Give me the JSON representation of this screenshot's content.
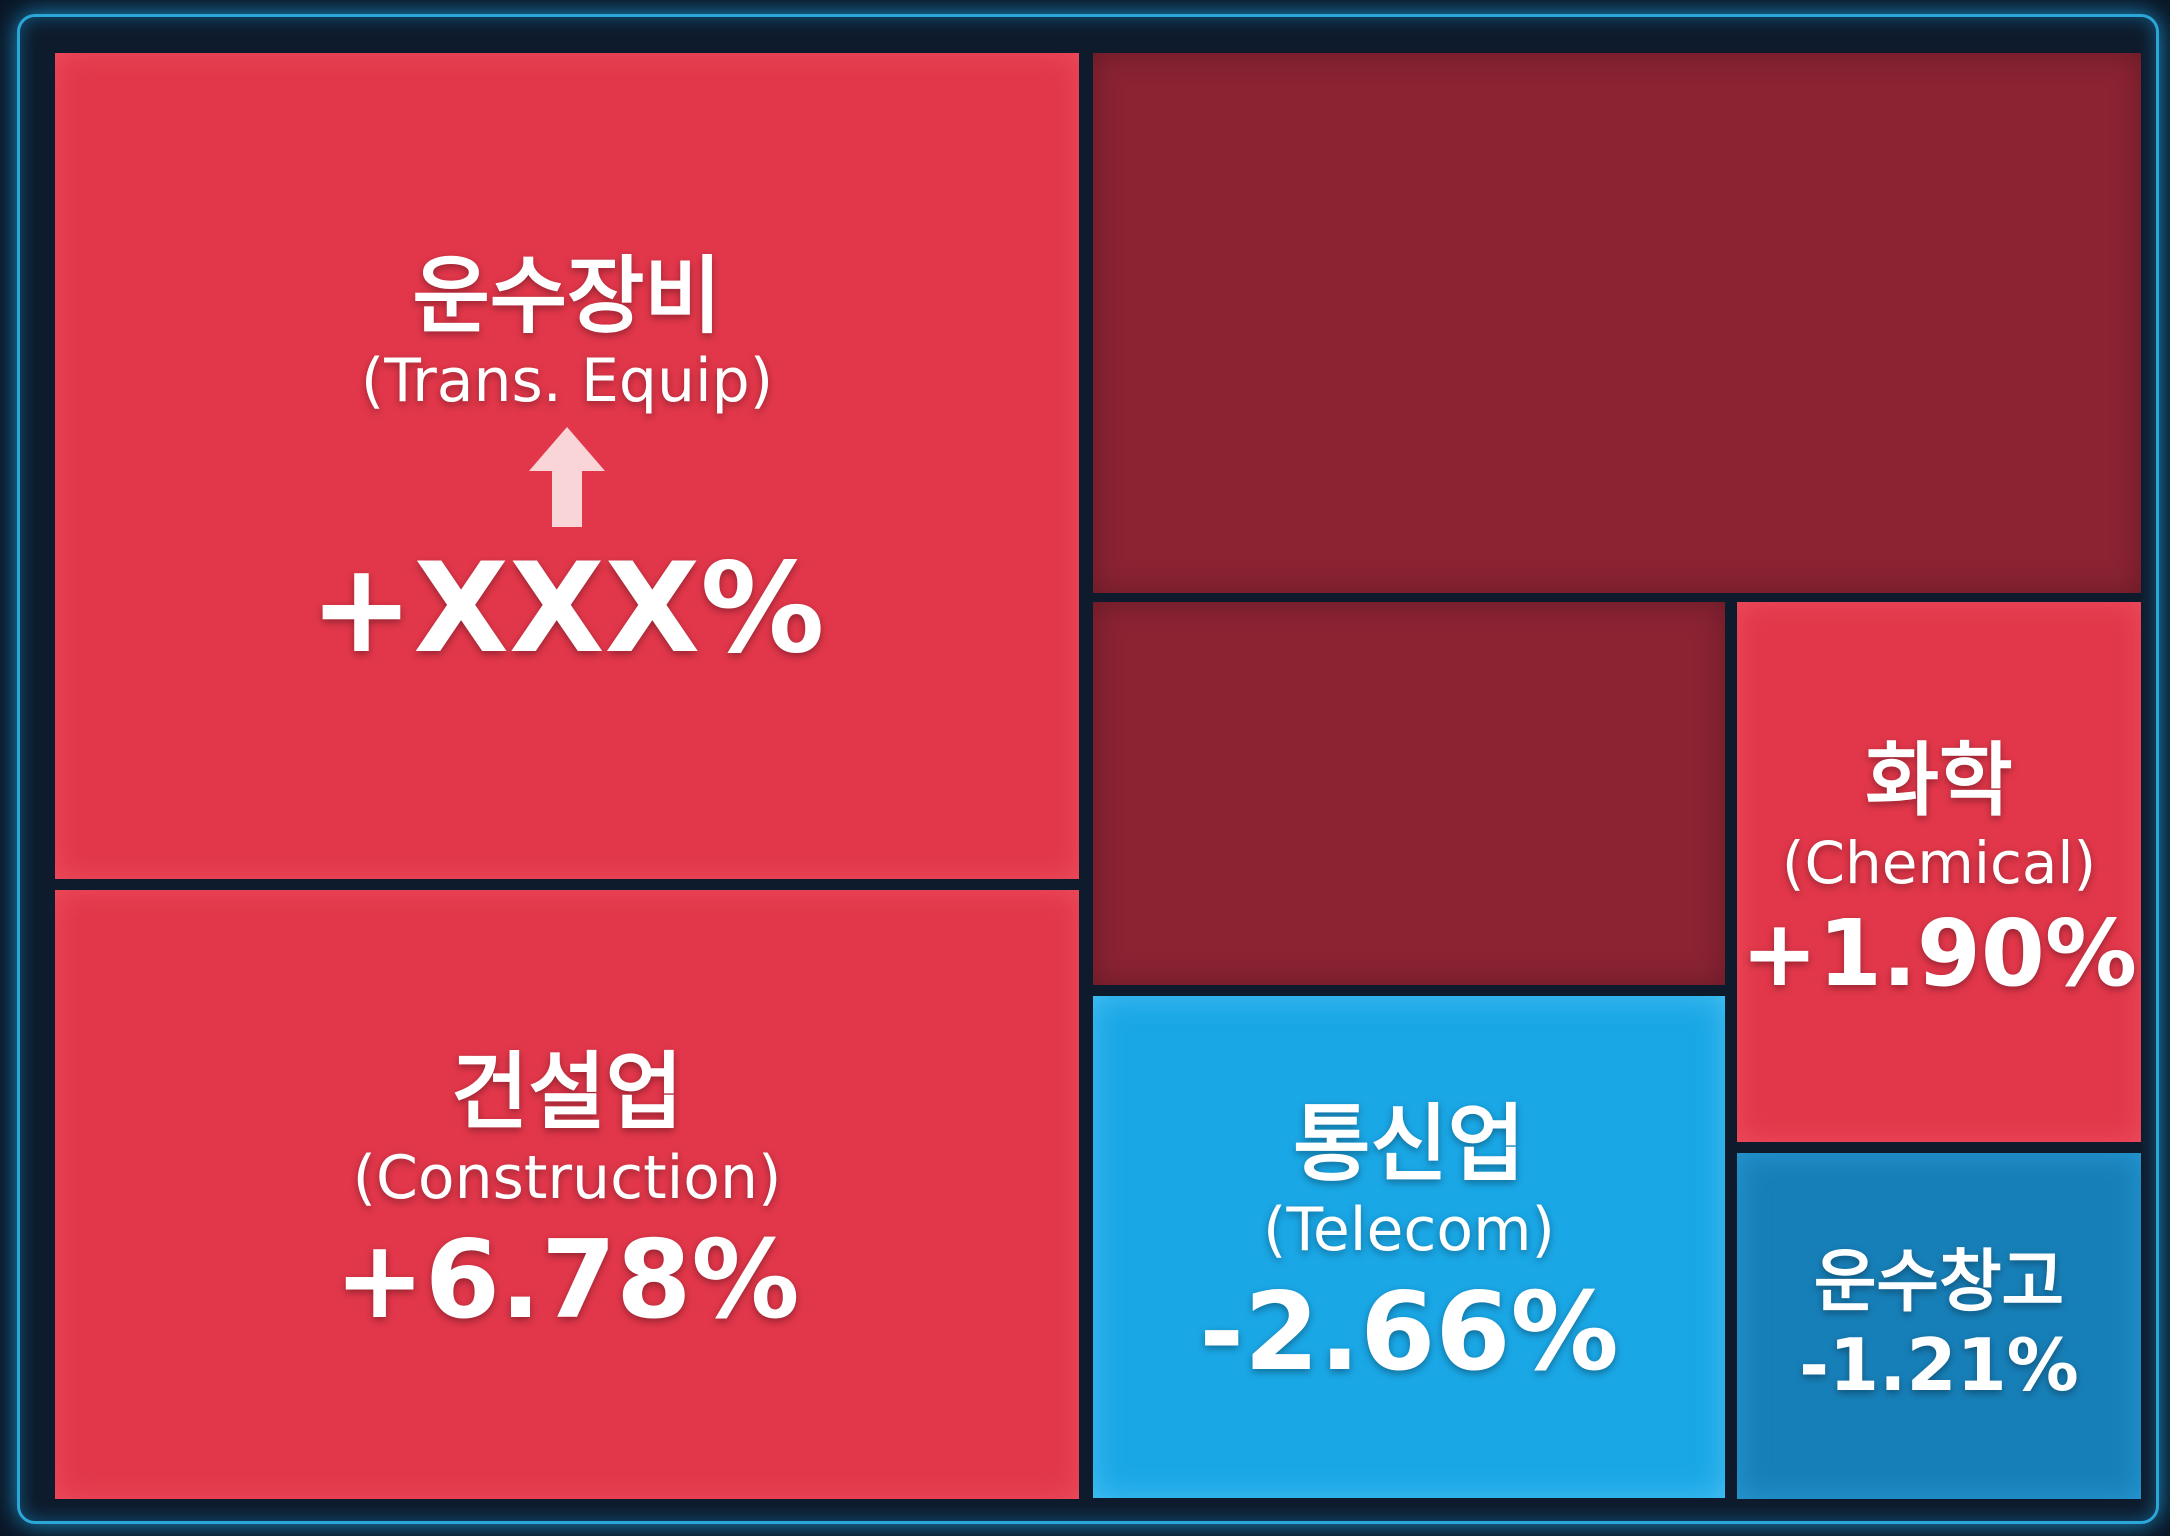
{
  "tiles": [
    {
      "korean": "운수장비",
      "english": "(Trans. Equip)",
      "change": "+XXX%"
    },
    {
      "korean": "건설업",
      "english": "(Construction)",
      "change": "+6.78%"
    },
    {
      "korean": "통신업",
      "english": "(Telecom)",
      "change": "-2.66%"
    },
    {
      "korean": "화학",
      "english": "(Chemical)",
      "change": "+1.90%"
    },
    {
      "korean": "운수창고",
      "change": "-1.21%"
    }
  ]
}
